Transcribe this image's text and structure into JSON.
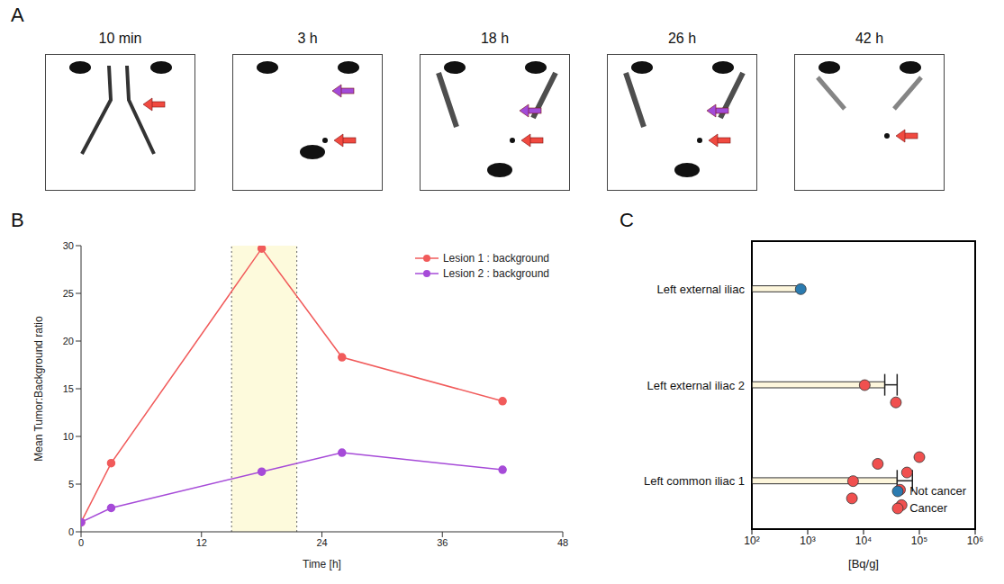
{
  "panel_a": {
    "panel": "A",
    "time_labels": [
      "10 min",
      "3 h",
      "18 h",
      "26 h",
      "42 h"
    ]
  },
  "chart_data": [
    {
      "panel": "B",
      "type": "line",
      "x_label": "Time [h]",
      "y_label": "Mean Tumor:Background ratio",
      "x": [
        0,
        3,
        18,
        26,
        42
      ],
      "series": [
        {
          "name": "Lesion 1 : background",
          "color": "#f15b5b",
          "marker": "circle",
          "values": [
            1,
            7.2,
            29.7,
            18.3,
            13.7
          ]
        },
        {
          "name": "Lesion 2 : background",
          "color": "#a64bd8",
          "marker": "circle",
          "values": [
            1,
            2.5,
            6.3,
            8.3,
            6.5
          ]
        }
      ],
      "shaded_x": [
        15,
        21.5
      ],
      "xlim": [
        0,
        48
      ],
      "xticks": [
        0,
        12,
        24,
        36,
        48
      ],
      "ylim": [
        0,
        30
      ],
      "yticks": [
        0,
        5,
        10,
        15,
        20,
        25,
        30
      ],
      "legend": "upper right"
    },
    {
      "panel": "C",
      "type": "bar",
      "orientation": "horizontal",
      "log": "x",
      "x_label": "[Bq/g]",
      "categories": [
        "Left common iliac 1",
        "Left external iliac 2",
        "Left external iliac"
      ],
      "values": [
        40000,
        24000,
        750
      ],
      "errors": [
        35000,
        16000,
        null
      ],
      "color": "#fdf6dc",
      "points": [
        {
          "name": "Not cancer",
          "color": "#2b7bb0",
          "values": [
            [],
            [],
            [
              750
            ]
          ]
        },
        {
          "name": "Cancer",
          "color": "#f0504f",
          "values": [
            [
              6500,
              6200,
              18000,
              45000,
              60000,
              48000,
              100000
            ],
            [
              10500,
              38000
            ],
            []
          ]
        }
      ],
      "xlim": [
        100,
        1000000
      ],
      "xticks": [
        {
          "value": 100,
          "label": "10²"
        },
        {
          "value": 1000,
          "label": "10³"
        },
        {
          "value": 10000,
          "label": "10⁴"
        },
        {
          "value": 100000,
          "label": "10⁵"
        },
        {
          "value": 1000000,
          "label": "10⁶"
        }
      ],
      "legend": "lower right"
    }
  ]
}
